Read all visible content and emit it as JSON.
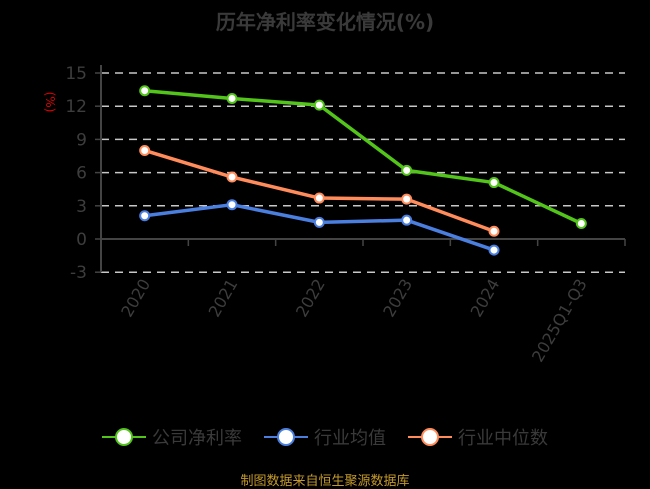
{
  "title": "历年净利率变化情况(%)",
  "unit_label": "(%)",
  "source": "制图数据来自恒生聚源数据库",
  "colors": {
    "company": "#52c41a",
    "industry_avg": "#4a7fe0",
    "industry_median": "#ff8c5a",
    "grid": "#c8c8c8",
    "axis": "#444444",
    "source": "#c49a2c",
    "unit": "#e00000"
  },
  "legend": [
    {
      "label": "公司净利率",
      "color": "#52c41a"
    },
    {
      "label": "行业均值",
      "color": "#4a7fe0"
    },
    {
      "label": "行业中位数",
      "color": "#ff8c5a"
    }
  ],
  "chart_data": {
    "type": "line",
    "title": "历年净利率变化情况(%)",
    "xlabel": "",
    "ylabel": "(%)",
    "ylim": [
      -3,
      15
    ],
    "yticks": [
      -3,
      0,
      3,
      6,
      9,
      12,
      15
    ],
    "grid": true,
    "legend_position": "bottom",
    "categories": [
      "2020",
      "2021",
      "2022",
      "2023",
      "2024",
      "2025Q1-Q3"
    ],
    "series": [
      {
        "name": "公司净利率",
        "values": [
          13.4,
          12.7,
          12.1,
          6.2,
          5.1,
          1.4
        ]
      },
      {
        "name": "行业均值",
        "values": [
          2.1,
          3.1,
          1.5,
          1.7,
          -1.0,
          null
        ]
      },
      {
        "name": "行业中位数",
        "values": [
          8.0,
          5.6,
          3.7,
          3.6,
          0.7,
          null
        ]
      }
    ]
  }
}
